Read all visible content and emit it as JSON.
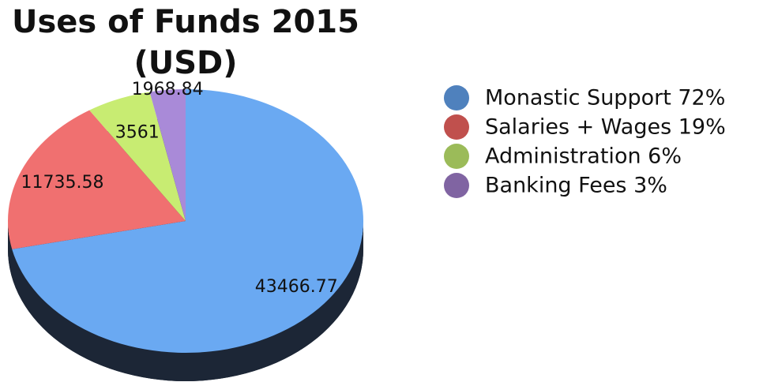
{
  "chart_data": {
    "type": "pie",
    "title": "Uses of Funds 2015 (USD)",
    "categories": [
      "Monastic Support 72%",
      "Salaries + Wages 19%",
      "Administration 6%",
      "Banking Fees 3%"
    ],
    "values": [
      43466.77,
      11735.58,
      3561,
      1968.84
    ],
    "colors": [
      "#6aa9f2",
      "#f07070",
      "#c8ec72",
      "#a98ad8"
    ],
    "legend_colors": [
      "#4f81bd",
      "#c0504d",
      "#9bbb59",
      "#8064a2"
    ],
    "legend": "right"
  }
}
